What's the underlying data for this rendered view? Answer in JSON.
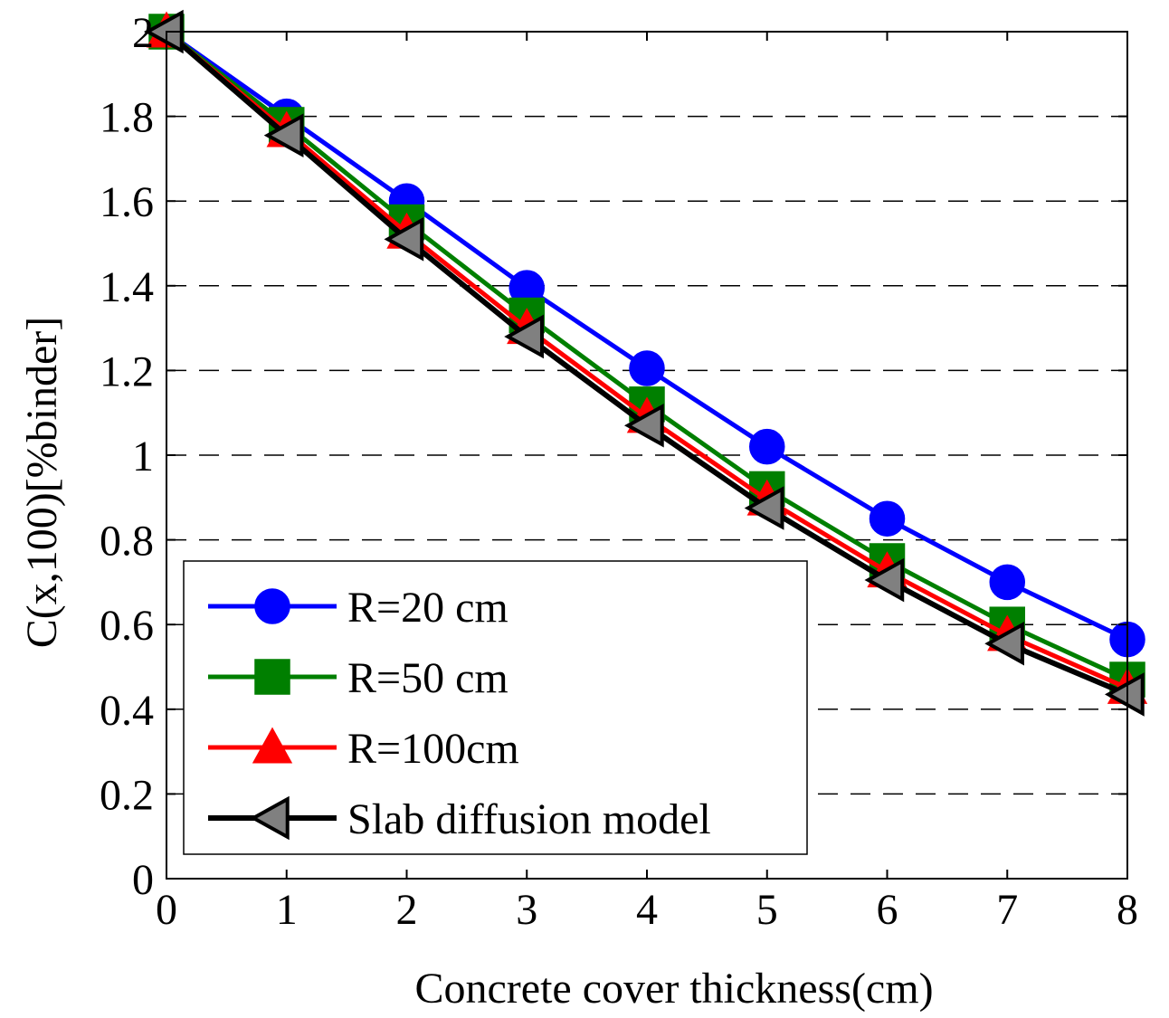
{
  "chart_data": {
    "type": "line",
    "title": "",
    "xlabel": "Concrete cover thickness(cm)",
    "ylabel": "C(x,100)[%binder]",
    "xlim": [
      0,
      8
    ],
    "ylim": [
      0,
      2
    ],
    "xticks": [
      0,
      1,
      2,
      3,
      4,
      5,
      6,
      7,
      8
    ],
    "xtick_labels": [
      "0",
      "1",
      "2",
      "3",
      "4",
      "5",
      "6",
      "7",
      "8"
    ],
    "yticks": [
      0,
      0.2,
      0.4,
      0.6,
      0.8,
      1,
      1.2,
      1.4,
      1.6,
      1.8,
      2
    ],
    "ytick_labels": [
      "0",
      "0.2",
      "0.4",
      "0.6",
      "0.8",
      "1",
      "1.2",
      "1.4",
      "1.6",
      "1.8",
      "2"
    ],
    "grid": "horizontal-dashed",
    "legend_position": "bottom-left",
    "x": [
      0,
      1,
      2,
      3,
      4,
      5,
      6,
      7,
      8
    ],
    "series": [
      {
        "name": "R=20 cm",
        "values": [
          2.0,
          1.8,
          1.6,
          1.395,
          1.205,
          1.02,
          0.85,
          0.7,
          0.565
        ],
        "color": "#0000ff",
        "marker": "circle"
      },
      {
        "name": "R=50 cm",
        "values": [
          2.0,
          1.78,
          1.55,
          1.33,
          1.12,
          0.92,
          0.75,
          0.6,
          0.47
        ],
        "color": "#007f00",
        "marker": "square"
      },
      {
        "name": "R=100cm",
        "values": [
          2.0,
          1.765,
          1.525,
          1.3,
          1.09,
          0.895,
          0.725,
          0.575,
          0.45
        ],
        "color": "#ff0000",
        "marker": "triangle-up"
      },
      {
        "name": "Slab diffusion model",
        "values": [
          2.0,
          1.755,
          1.51,
          1.28,
          1.07,
          0.875,
          0.705,
          0.555,
          0.435
        ],
        "color": "#000000",
        "marker_fill": "#808080",
        "marker": "triangle-left"
      }
    ]
  }
}
